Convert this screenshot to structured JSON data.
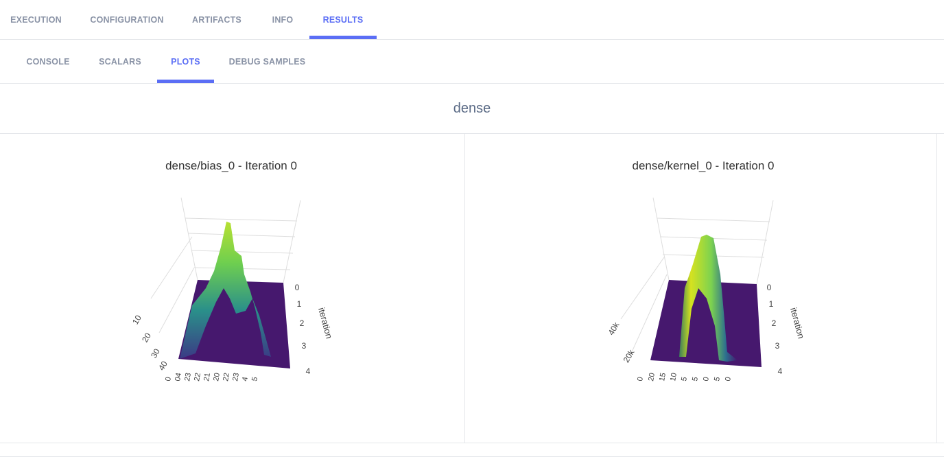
{
  "tabs": [
    "EXECUTION",
    "CONFIGURATION",
    "ARTIFACTS",
    "INFO",
    "RESULTS"
  ],
  "active_tab": 4,
  "subtabs": [
    "CONSOLE",
    "SCALARS",
    "PLOTS",
    "DEBUG SAMPLES"
  ],
  "active_subtab": 2,
  "section_title": "dense",
  "plots": [
    {
      "title": "dense/bias_0 - Iteration 0",
      "y_axis_title": "iteration",
      "y_ticks": [
        "0",
        "1",
        "2",
        "3",
        "4"
      ],
      "z_ticks": [
        "10",
        "20",
        "30",
        "40"
      ],
      "x_ticks": [
        "0",
        "04",
        "23",
        "22",
        "21",
        "20",
        "22",
        "23",
        "4",
        "5"
      ]
    },
    {
      "title": "dense/kernel_0 - Iteration 0",
      "y_axis_title": "iteration",
      "y_ticks": [
        "0",
        "1",
        "2",
        "3",
        "4"
      ],
      "z_ticks": [
        "20k",
        "40k"
      ],
      "x_ticks": [
        "0",
        "20",
        "15",
        "10",
        "5",
        "5",
        "0",
        "5",
        "0"
      ]
    }
  ]
}
